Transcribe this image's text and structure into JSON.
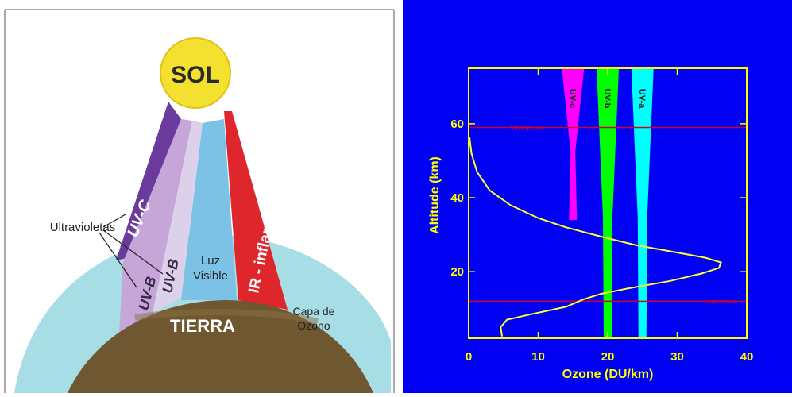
{
  "diagram": {
    "sun_label": "SOL",
    "earth_label": "TIERRA",
    "ozone_label_line1": "Capa de",
    "ozone_label_line2": "Ozono",
    "uv_group_label": "Ultravioletas",
    "beams": {
      "uvc": "UV-C",
      "uvb_outer": "UV-B",
      "uvb_inner": "UV-B",
      "visible_line1": "Luz",
      "visible_line2": "Visible",
      "ir": "IR - inflarrojos"
    },
    "colors": {
      "sun": "#f4e02e",
      "uvc": "#6a3a9c",
      "uvb": "#c6a6d8",
      "uvb_inner": "#ddd0ea",
      "visible": "#7cc1e6",
      "ir": "#e0262d",
      "ozone": "#a7dde4",
      "earth": "#6f5731"
    }
  },
  "chart_data": {
    "type": "line",
    "xlabel": "Ozone (DU/km)",
    "ylabel": "Altitude (km)",
    "xlim": [
      0,
      40
    ],
    "ylim": [
      2,
      75
    ],
    "x_ticks": [
      0,
      10,
      20,
      30,
      40
    ],
    "y_ticks": [
      20,
      40,
      60
    ],
    "series": [
      {
        "values": [
          [
            4.8,
            2.5
          ],
          [
            4.6,
            5
          ],
          [
            5.5,
            7
          ],
          [
            9,
            8.5
          ],
          [
            14,
            10.5
          ],
          [
            16.5,
            12.5
          ],
          [
            19,
            14
          ],
          [
            23,
            15.5
          ],
          [
            29,
            17.5
          ],
          [
            33.5,
            19.5
          ],
          [
            36,
            21
          ],
          [
            36.3,
            22.5
          ],
          [
            34,
            23.8
          ],
          [
            29,
            25.5
          ],
          [
            24,
            27.2
          ],
          [
            19,
            29.5
          ],
          [
            14,
            32
          ],
          [
            10,
            34.5
          ],
          [
            6,
            38
          ],
          [
            3,
            42
          ],
          [
            1.2,
            47
          ],
          [
            0.4,
            52
          ],
          [
            0.1,
            56.5
          ]
        ]
      }
    ],
    "reference_lines": [
      {
        "label": "Stratopause",
        "y": 59
      },
      {
        "label": "Tropopause",
        "y": 12
      }
    ],
    "bands": [
      {
        "label": "UV-c",
        "center": 15,
        "color": "#ff00ff",
        "y_min": 34,
        "y_max": 75
      },
      {
        "label": "UV-b",
        "center": 20,
        "color": "#00ff00",
        "y_min": 2,
        "y_max": 75
      },
      {
        "label": "UV-a",
        "center": 25,
        "color": "#00ffff",
        "y_min": 2,
        "y_max": 75
      }
    ],
    "colors": {
      "background": "#0000f2",
      "axis": "#ffff00",
      "profile": "#ffff30",
      "reference_line": "#cc0033"
    }
  }
}
